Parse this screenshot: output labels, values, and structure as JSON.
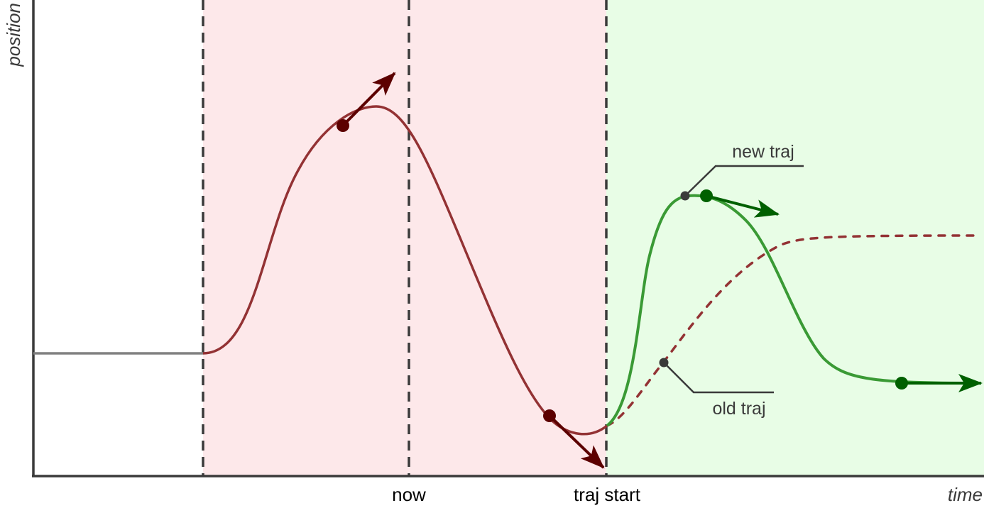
{
  "axes": {
    "y_label": "position",
    "x_label": "time"
  },
  "markers": {
    "now": "now",
    "traj_start": "traj start"
  },
  "annotations": {
    "new_traj": "new traj",
    "old_traj": "old traj"
  },
  "colors": {
    "past_region": "#fde8ea",
    "future_region": "#e8fde6",
    "old_trajectory": "#933234",
    "new_trajectory": "#3a9a35",
    "old_arrow": "#5c0000",
    "new_arrow": "#006000",
    "initial": "#808080",
    "axis": "#3a3a3a"
  }
}
